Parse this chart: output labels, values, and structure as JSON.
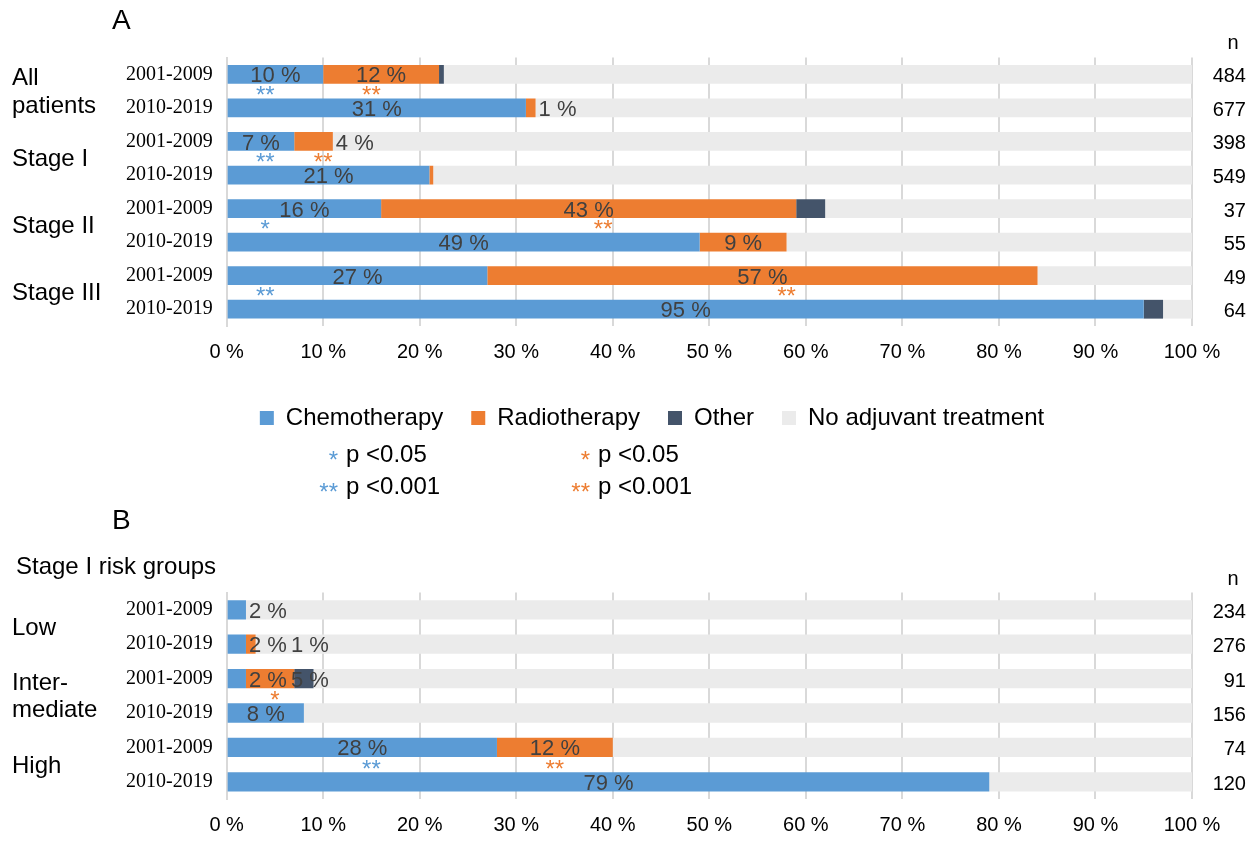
{
  "chart_data": [
    {
      "type": "bar",
      "orientation": "horizontal",
      "stacked": true,
      "title": "A",
      "grid": "x",
      "legend": "bottom",
      "xlim": [
        0,
        100
      ],
      "xticks": [
        {
          "value": 0,
          "label": "0 %"
        },
        {
          "value": 10,
          "label": "10 %"
        },
        {
          "value": 20,
          "label": "20 %"
        },
        {
          "value": 30,
          "label": "30 %"
        },
        {
          "value": 40,
          "label": "40 %"
        },
        {
          "value": 50,
          "label": "50 %"
        },
        {
          "value": 60,
          "label": "60 %"
        },
        {
          "value": 70,
          "label": "70 %"
        },
        {
          "value": 80,
          "label": "80 %"
        },
        {
          "value": 90,
          "label": "90 %"
        },
        {
          "value": 100,
          "label": "100 %"
        }
      ],
      "categories": [
        "2001-2009",
        "2010-2019",
        "2001-2009",
        "2010-2019",
        "2001-2009",
        "2010-2019",
        "2001-2009",
        "2010-2019"
      ],
      "series": [
        {
          "name": "Chemotherapy",
          "color": "#5b9bd5",
          "values": [
            10,
            31,
            7,
            21,
            16,
            49,
            27,
            95
          ],
          "value_labels": [
            "10 %",
            "31 %",
            "7 %",
            "21 %",
            "16 %",
            "49 %",
            "27 %",
            "95 %"
          ]
        },
        {
          "name": "Radiotherapy",
          "color": "#ed7d31",
          "values": [
            12,
            1,
            4,
            0.4,
            43,
            9,
            57,
            0
          ],
          "value_labels": [
            "12 %",
            "1 %",
            "4 %",
            null,
            "43 %",
            "9 %",
            "57 %",
            null
          ]
        },
        {
          "name": "Other",
          "color": "#44546a",
          "values": [
            0.5,
            0,
            0,
            0,
            3,
            0,
            0,
            2
          ]
        },
        {
          "name": "No adjuvant treatment",
          "color": "#ebebeb",
          "values": [
            77.5,
            68,
            89,
            78.6,
            38,
            42,
            16,
            3
          ]
        }
      ],
      "annotations": [
        "All patients",
        "Stage I",
        "Stage II",
        "Stage III",
        "n",
        "484",
        "677",
        "398",
        "549",
        "37",
        "55",
        "49",
        "64",
        {
          "text": "**",
          "x": 4
        },
        {
          "text": "**",
          "x": 15
        },
        {
          "text": "**",
          "x": 4
        },
        {
          "text": "**",
          "x": 10
        },
        {
          "text": "*",
          "x": 4
        },
        {
          "text": "**",
          "x": 39
        },
        {
          "text": "**",
          "x": 4
        },
        {
          "text": "**",
          "x": 58
        },
        "*",
        "p <0.05",
        "**",
        "p <0.001",
        "*",
        "p <0.05",
        "**",
        "p <0.001"
      ]
    },
    {
      "type": "bar",
      "orientation": "horizontal",
      "stacked": true,
      "title": "B",
      "grid": "x",
      "xlim": [
        0,
        100
      ],
      "xticks": [
        {
          "value": 0,
          "label": "0 %"
        },
        {
          "value": 10,
          "label": "10 %"
        },
        {
          "value": 20,
          "label": "20 %"
        },
        {
          "value": 30,
          "label": "30 %"
        },
        {
          "value": 40,
          "label": "40 %"
        },
        {
          "value": 50,
          "label": "50 %"
        },
        {
          "value": 60,
          "label": "60 %"
        },
        {
          "value": 70,
          "label": "70 %"
        },
        {
          "value": 80,
          "label": "80 %"
        },
        {
          "value": 90,
          "label": "90 %"
        },
        {
          "value": 100,
          "label": "100 %"
        }
      ],
      "categories": [
        "2001-2009",
        "2010-2019",
        "2001-2009",
        "2010-2019",
        "2001-2009",
        "2010-2019"
      ],
      "series": [
        {
          "color": "#5b9bd5",
          "values": [
            2,
            2,
            2,
            8,
            28,
            79
          ],
          "value_labels": [
            "2 %",
            "2 %",
            "2 %",
            "8 %",
            "28 %",
            "79 %"
          ]
        },
        {
          "color": "#ed7d31",
          "values": [
            0,
            1,
            5,
            0,
            12,
            0
          ],
          "value_labels": [
            null,
            "1 %",
            "5 %",
            null,
            "12 %",
            null
          ]
        },
        {
          "color": "#44546a",
          "values": [
            0,
            0,
            2,
            0,
            0,
            0
          ]
        },
        {
          "color": "#ebebeb",
          "values": [
            98,
            97,
            91,
            92,
            60,
            21
          ]
        }
      ],
      "annotations": [
        "Stage I risk groups",
        "Low",
        "Inter-mediate",
        "High",
        "n",
        "234",
        "276",
        "91",
        "156",
        "74",
        "120",
        {
          "text": "*",
          "x": 5
        },
        {
          "text": "**",
          "x": 15
        },
        {
          "text": "**",
          "x": 34
        }
      ]
    }
  ]
}
